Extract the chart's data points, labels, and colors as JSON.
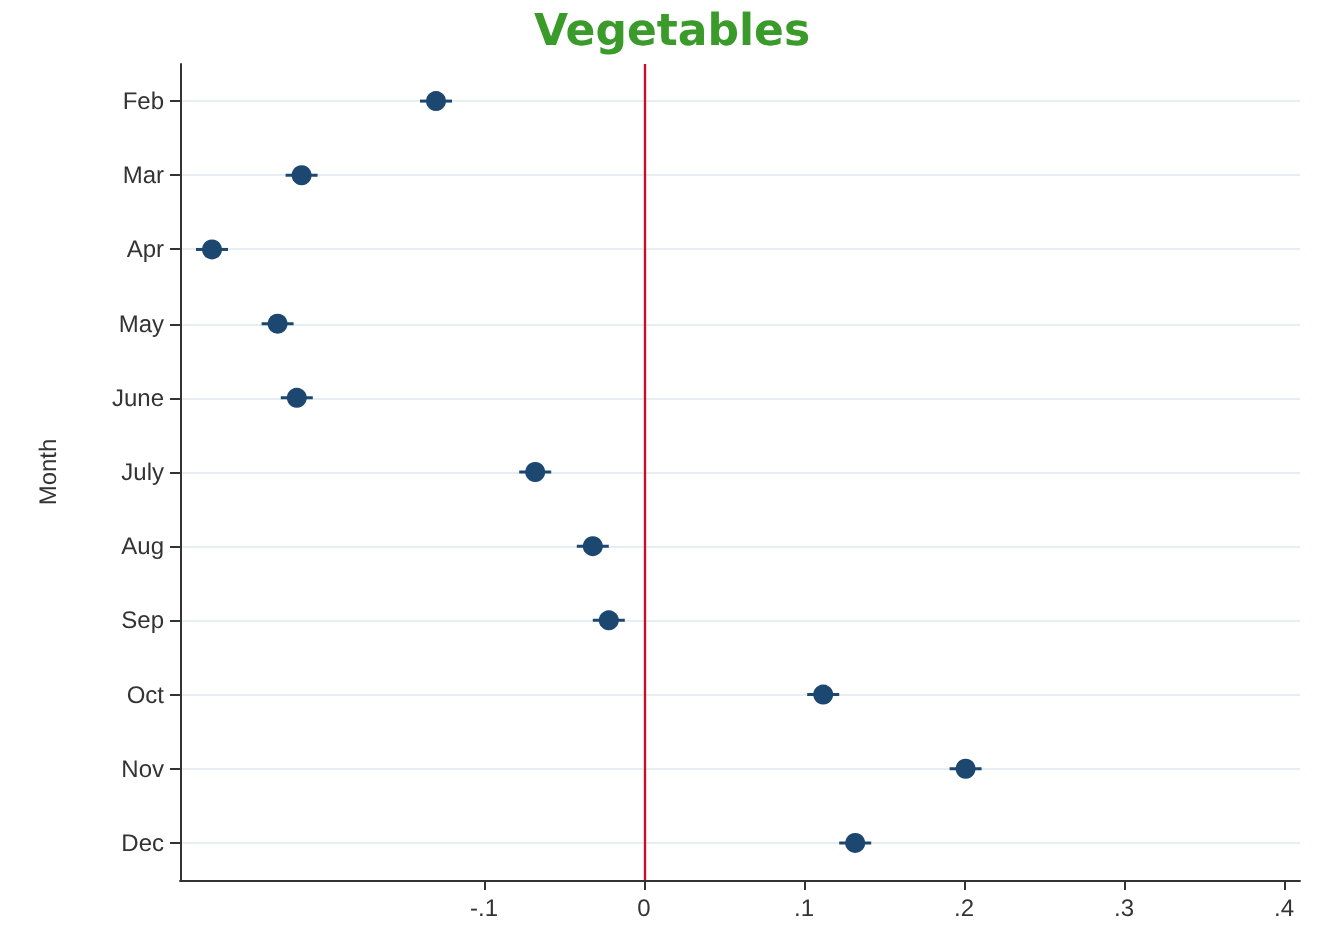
{
  "chart_data": {
    "type": "scatter",
    "orientation": "horizontal",
    "title": "Vegetables",
    "ylabel": "Month",
    "categories": [
      "Feb",
      "Mar",
      "Apr",
      "May",
      "June",
      "July",
      "Aug",
      "Sep",
      "Oct",
      "Nov",
      "Dec"
    ],
    "series": [
      {
        "color": "#1c4770",
        "values": [
          -0.13,
          -0.214,
          -0.27,
          -0.229,
          -0.217,
          -0.068,
          -0.032,
          -0.022,
          0.112,
          0.201,
          0.132
        ],
        "errors": [
          0.01,
          0.01,
          0.01,
          0.01,
          0.01,
          0.01,
          0.01,
          0.01,
          0.01,
          0.01,
          0.01
        ]
      }
    ],
    "xlim": [
      -0.29,
      0.41
    ],
    "xticks": [
      {
        "value": -0.1,
        "label": "-.1"
      },
      0,
      {
        "value": 0.1,
        "label": ".1"
      },
      {
        "value": 0.2,
        "label": ".2"
      },
      {
        "value": 0.3,
        "label": ".3"
      },
      {
        "value": 0.4,
        "label": ".4"
      }
    ],
    "ref_lines": [
      {
        "axis": "x",
        "value": 0,
        "color": "#c8102e"
      }
    ],
    "grid": "y",
    "marker": "circle"
  }
}
